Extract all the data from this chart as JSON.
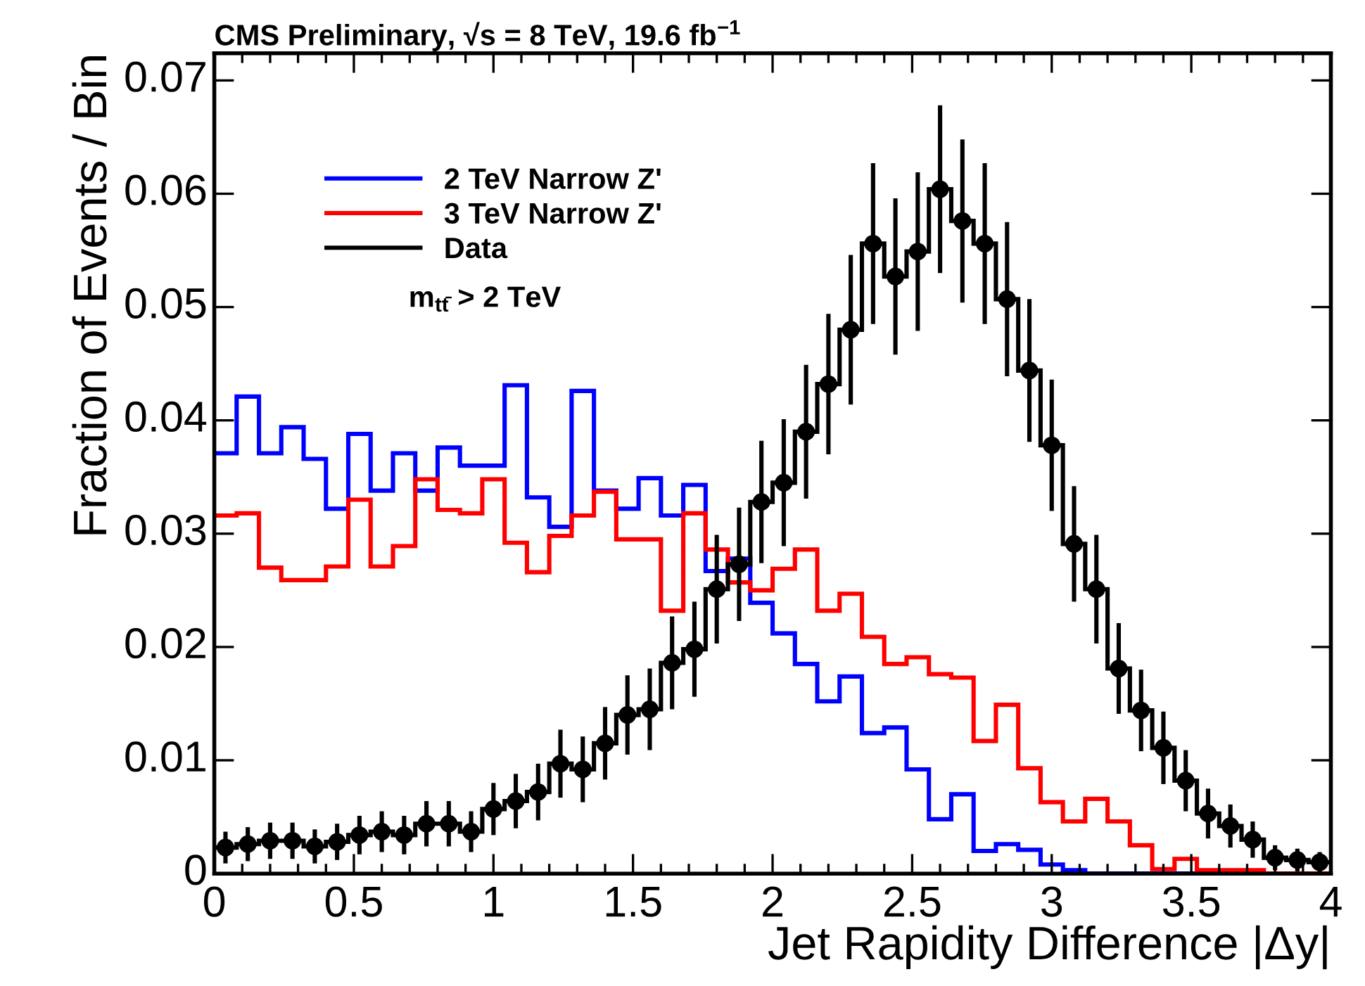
{
  "chart_data": {
    "type": "histogram",
    "title": "CMS Preliminary, √s = 8 TeV, 19.6 fb$^{−1}$",
    "xlabel": "Jet Rapidity Difference |Δy|",
    "ylabel": "Fraction of Events / Bin",
    "annotations": [
      "m$_{tt̄}$ > 2 TeV"
    ],
    "bins": [
      0,
      0.08,
      0.16,
      0.24,
      0.32,
      0.4,
      0.48,
      0.56,
      0.64,
      0.72,
      0.8,
      0.88,
      0.96,
      1.04,
      1.12,
      1.2,
      1.28,
      1.36,
      1.44,
      1.52,
      1.6,
      1.68,
      1.76,
      1.84,
      1.92,
      2,
      2.08,
      2.16,
      2.24,
      2.32,
      2.4,
      2.48,
      2.56,
      2.64,
      2.72,
      2.8,
      2.88,
      2.96,
      3.04,
      3.12,
      3.2,
      3.28,
      3.36,
      3.44,
      3.52,
      3.6,
      3.68,
      3.76,
      3.84,
      3.92,
      4
    ],
    "series": [
      {
        "name": "2 TeV Narrow Z'",
        "color": "#0000ff",
        "values": [
          0.0371,
          0.0421,
          0.0371,
          0.0394,
          0.0366,
          0.0322,
          0.0388,
          0.0338,
          0.0371,
          0.0338,
          0.0376,
          0.036,
          0.036,
          0.0431,
          0.0332,
          0.0306,
          0.0426,
          0.0338,
          0.0322,
          0.0349,
          0.0316,
          0.0343,
          0.0267,
          0.0278,
          0.0239,
          0.0212,
          0.0185,
          0.0152,
          0.0174,
          0.0124,
          0.0129,
          0.0092,
          0.0048,
          0.007,
          0.002,
          0.0026,
          0.0021,
          0.0008,
          0.0003,
          0,
          0,
          0,
          0,
          0,
          0,
          0,
          0,
          0,
          0,
          0
        ]
      },
      {
        "name": "3 TeV Narrow Z'",
        "color": "#ff0000",
        "values": [
          0.0316,
          0.0318,
          0.027,
          0.0259,
          0.0259,
          0.0271,
          0.033,
          0.0271,
          0.0289,
          0.0348,
          0.0321,
          0.0318,
          0.0348,
          0.0292,
          0.0266,
          0.0298,
          0.0316,
          0.0337,
          0.0295,
          0.0295,
          0.0232,
          0.0318,
          0.0286,
          0.0257,
          0.025,
          0.0269,
          0.0286,
          0.0232,
          0.0247,
          0.0209,
          0.0185,
          0.0191,
          0.0176,
          0.0173,
          0.0117,
          0.0149,
          0.0093,
          0.0063,
          0.0046,
          0.0066,
          0.0046,
          0.0025,
          0.0004,
          0.0013,
          0.0003,
          0.0003,
          0.0003,
          0,
          0,
          0
        ]
      },
      {
        "name": "Data",
        "color": "#000000",
        "values": [
          0.0023,
          0.0026,
          0.0029,
          0.0029,
          0.0024,
          0.0028,
          0.0034,
          0.0037,
          0.0034,
          0.0044,
          0.0044,
          0.0037,
          0.0057,
          0.0064,
          0.0072,
          0.0097,
          0.0092,
          0.0115,
          0.014,
          0.0145,
          0.0186,
          0.0198,
          0.0251,
          0.0273,
          0.0328,
          0.0345,
          0.039,
          0.0432,
          0.048,
          0.0556,
          0.0527,
          0.0549,
          0.0604,
          0.0576,
          0.0556,
          0.0507,
          0.0444,
          0.0378,
          0.0291,
          0.0251,
          0.0181,
          0.0144,
          0.0111,
          0.0082,
          0.0053,
          0.0042,
          0.003,
          0.0014,
          0.0012,
          0.001
        ]
      },
      {
        "type": "scatter",
        "color": "#000000",
        "marker": "circle",
        "x": [
          0.04,
          0.12,
          0.2,
          0.28,
          0.36,
          0.44,
          0.52,
          0.6,
          0.68,
          0.76,
          0.84,
          0.92,
          1.0,
          1.08,
          1.16,
          1.24,
          1.32,
          1.4,
          1.48,
          1.56,
          1.64,
          1.72,
          1.8,
          1.88,
          1.96,
          2.04,
          2.12,
          2.2,
          2.28,
          2.36,
          2.44,
          2.52,
          2.6,
          2.68,
          2.76,
          2.84,
          2.92,
          3.0,
          3.08,
          3.16,
          3.24,
          3.32,
          3.4,
          3.48,
          3.56,
          3.64,
          3.72,
          3.8,
          3.88,
          3.96
        ],
        "values": [
          0.0023,
          0.0026,
          0.0029,
          0.0029,
          0.0024,
          0.0028,
          0.0034,
          0.0037,
          0.0034,
          0.0044,
          0.0044,
          0.0037,
          0.0057,
          0.0064,
          0.0072,
          0.0097,
          0.0092,
          0.0115,
          0.014,
          0.0145,
          0.0186,
          0.0198,
          0.0251,
          0.0273,
          0.0328,
          0.0345,
          0.039,
          0.0432,
          0.048,
          0.0556,
          0.0527,
          0.0549,
          0.0604,
          0.0576,
          0.0556,
          0.0507,
          0.0444,
          0.0378,
          0.0291,
          0.0251,
          0.0181,
          0.0144,
          0.0111,
          0.0082,
          0.0053,
          0.0042,
          0.003,
          0.0014,
          0.0012,
          0.001
        ],
        "errors": [
          0.0014,
          0.0015,
          0.0016,
          0.0016,
          0.0015,
          0.0016,
          0.0017,
          0.0018,
          0.0017,
          0.002,
          0.002,
          0.0018,
          0.0023,
          0.0024,
          0.0025,
          0.003,
          0.0029,
          0.0032,
          0.0035,
          0.0036,
          0.0041,
          0.0042,
          0.0048,
          0.005,
          0.0054,
          0.0056,
          0.0059,
          0.0062,
          0.0066,
          0.0071,
          0.0069,
          0.007,
          0.0074,
          0.0072,
          0.0071,
          0.0068,
          0.0063,
          0.0058,
          0.0051,
          0.0048,
          0.004,
          0.0036,
          0.0032,
          0.0027,
          0.0022,
          0.0019,
          0.0016,
          0.0011,
          0.001,
          0.0009
        ]
      }
    ],
    "xlim": [
      0,
      4
    ],
    "xticks": [
      0,
      0.5,
      1,
      1.5,
      2,
      2.5,
      3,
      3.5,
      4,
      {
        "value": 0.1,
        "label": null
      },
      {
        "value": 0.2,
        "label": null
      },
      {
        "value": 0.3,
        "label": null
      },
      {
        "value": 0.4,
        "label": null
      },
      {
        "value": 0.6,
        "label": null
      },
      {
        "value": 0.7,
        "label": null
      },
      {
        "value": 0.8,
        "label": null
      },
      {
        "value": 0.9,
        "label": null
      },
      {
        "value": 1.1,
        "label": null
      },
      {
        "value": 1.2,
        "label": null
      },
      {
        "value": 1.3,
        "label": null
      },
      {
        "value": 1.4,
        "label": null
      },
      {
        "value": 1.6,
        "label": null
      },
      {
        "value": 1.7,
        "label": null
      },
      {
        "value": 1.8,
        "label": null
      },
      {
        "value": 1.9,
        "label": null
      },
      {
        "value": 2.1,
        "label": null
      },
      {
        "value": 2.2,
        "label": null
      },
      {
        "value": 2.3,
        "label": null
      },
      {
        "value": 2.4,
        "label": null
      },
      {
        "value": 2.6,
        "label": null
      },
      {
        "value": 2.7,
        "label": null
      },
      {
        "value": 2.8,
        "label": null
      },
      {
        "value": 2.9,
        "label": null
      },
      {
        "value": 3.1,
        "label": null
      },
      {
        "value": 3.2,
        "label": null
      },
      {
        "value": 3.3,
        "label": null
      },
      {
        "value": 3.4,
        "label": null
      },
      {
        "value": 3.6,
        "label": null
      },
      {
        "value": 3.7,
        "label": null
      },
      {
        "value": 3.8,
        "label": null
      },
      {
        "value": 3.9,
        "label": null
      }
    ],
    "ylim": [
      0,
      0.0724
    ],
    "yticks": [
      0,
      0.01,
      0.02,
      0.03,
      0.04,
      0.05,
      0.06,
      0.07
    ],
    "legend": "top left",
    "grid": false
  }
}
